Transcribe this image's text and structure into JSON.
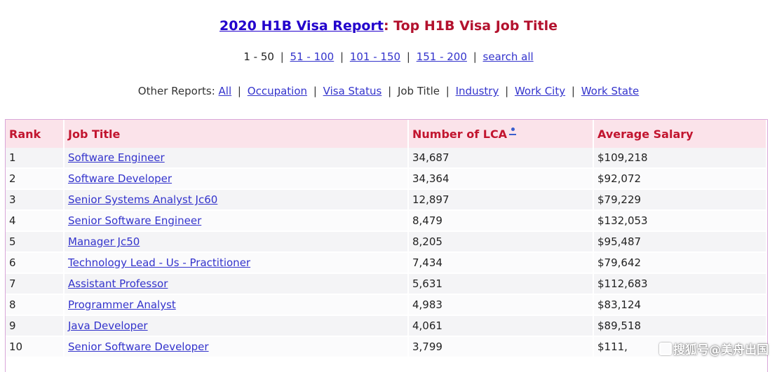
{
  "header": {
    "title_link": "2020 H1B Visa Report",
    "title_colon": ":",
    "title_rest": " Top H1B Visa Job Title"
  },
  "pager": {
    "current": "1 - 50",
    "links": [
      "51 - 100",
      "101 - 150",
      "151 - 200",
      "search all"
    ],
    "separator": "|"
  },
  "reports": {
    "label": "Other Reports:",
    "items": [
      {
        "label": "All",
        "link": true
      },
      {
        "label": "Occupation",
        "link": true
      },
      {
        "label": "Visa Status",
        "link": true
      },
      {
        "label": "Job Title",
        "link": false
      },
      {
        "label": "Industry",
        "link": true
      },
      {
        "label": "Work City",
        "link": true
      },
      {
        "label": "Work State",
        "link": true
      }
    ]
  },
  "table": {
    "headers": {
      "rank": "Rank",
      "job_title": "Job Title",
      "lca": "Number of LCA",
      "salary": "Average Salary"
    },
    "sort_icon": "sort-indicator-icon",
    "rows": [
      {
        "rank": "1",
        "title": "Software Engineer",
        "lca": "34,687",
        "salary": "$109,218"
      },
      {
        "rank": "2",
        "title": "Software Developer",
        "lca": "34,364",
        "salary": "$92,072"
      },
      {
        "rank": "3",
        "title": "Senior Systems Analyst Jc60",
        "lca": "12,897",
        "salary": "$79,229"
      },
      {
        "rank": "4",
        "title": "Senior Software Engineer",
        "lca": "8,479",
        "salary": "$132,053"
      },
      {
        "rank": "5",
        "title": "Manager Jc50",
        "lca": "8,205",
        "salary": "$95,487"
      },
      {
        "rank": "6",
        "title": "Technology Lead - Us - Practitioner",
        "lca": "7,434",
        "salary": "$79,642"
      },
      {
        "rank": "7",
        "title": "Assistant Professor",
        "lca": "5,631",
        "salary": "$112,683"
      },
      {
        "rank": "8",
        "title": "Programmer Analyst",
        "lca": "4,983",
        "salary": "$83,124"
      },
      {
        "rank": "9",
        "title": "Java Developer",
        "lca": "4,061",
        "salary": "$89,518"
      },
      {
        "rank": "10",
        "title": "Senior Software Developer",
        "lca": "3,799",
        "salary": "$111,"
      }
    ]
  },
  "watermark": {
    "text": "搜狐号@美舟出国"
  },
  "colors": {
    "link": "#3333cc",
    "title_link": "#2200cc",
    "accent_red": "#c2152f",
    "header_bg": "#fbe3ea",
    "table_border": "#d9a6d9"
  }
}
